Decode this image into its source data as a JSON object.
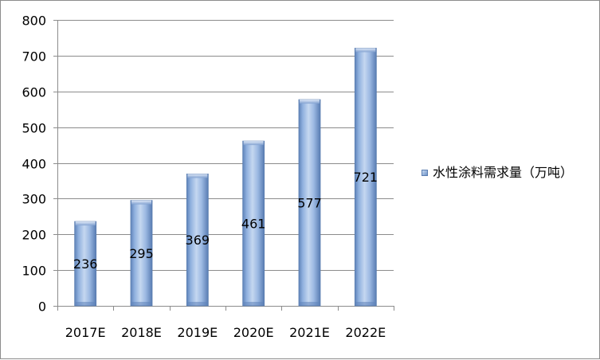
{
  "chart_data": {
    "type": "bar",
    "categories": [
      "2017E",
      "2018E",
      "2019E",
      "2020E",
      "2021E",
      "2022E"
    ],
    "series": [
      {
        "name": "水性涂料需求量（万吨）",
        "values": [
          236,
          295,
          369,
          461,
          577,
          721
        ]
      }
    ],
    "y_ticks": [
      "0",
      "100",
      "200",
      "300",
      "400",
      "500",
      "600",
      "700",
      "800"
    ],
    "ylim": [
      0,
      800
    ],
    "grid": true,
    "legend_position": "right",
    "data_labels": true,
    "bar_color": "#8aaee0",
    "bar_edge_color": "#5a7db0"
  }
}
